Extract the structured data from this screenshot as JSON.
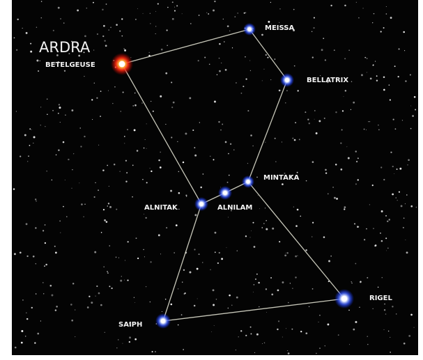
{
  "title": "ARDRA",
  "stars": [
    {
      "label": "BETELGEUSE"
    },
    {
      "label": "MEISSA"
    },
    {
      "label": "BELLATRIX"
    },
    {
      "label": "MINTAKA"
    },
    {
      "label": "ALNILAM"
    },
    {
      "label": "ALNITAK"
    },
    {
      "label": "SAIPH"
    },
    {
      "label": "RIGEL"
    }
  ]
}
